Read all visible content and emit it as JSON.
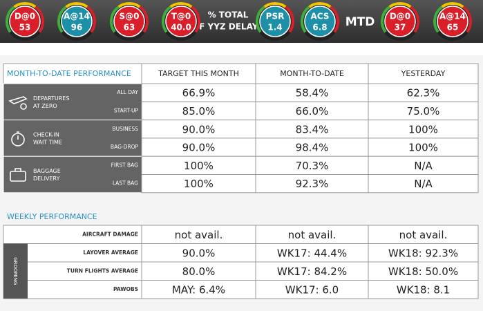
{
  "header": {
    "gauges": [
      {
        "label": "D@0",
        "value": "53",
        "color": "#d81f2a"
      },
      {
        "label": "A@14",
        "value": "96",
        "color": "#1d8fa6"
      },
      {
        "label": "S@0",
        "value": "63",
        "color": "#d81f2a"
      },
      {
        "label": "T@0",
        "value": "40.0",
        "color": "#d81f2a"
      },
      {
        "label": "PSR",
        "value": "1.4",
        "color": "#1d8fa6"
      },
      {
        "label": "ACS",
        "value": "6.8",
        "color": "#1d8fa6"
      },
      {
        "label": "D@0",
        "value": "37",
        "color": "#d81f2a"
      },
      {
        "label": "A@14",
        "value": "65",
        "color": "#d81f2a"
      }
    ],
    "delay_caption": [
      "% TOTAL",
      "OF YYZ DELAYS"
    ],
    "mtd": "MTD"
  },
  "monthly": {
    "title": "MONTH-TO-DATE PERFORMANCE",
    "columns": [
      "TARGET THIS MONTH",
      "MONTH-TO-DATE",
      "YESTERDAY"
    ],
    "groups": [
      {
        "label": [
          "DEPARTURES",
          "AT ZERO"
        ],
        "rows": [
          {
            "label": "ALL DAY",
            "cells": [
              "66.9%",
              "58.4%",
              "62.3%"
            ]
          },
          {
            "label": "START-UP",
            "cells": [
              "85.0%",
              "66.0%",
              "75.0%"
            ]
          }
        ]
      },
      {
        "label": [
          "CHECK-IN",
          "WAIT TIME"
        ],
        "rows": [
          {
            "label": "BUSINESS",
            "cells": [
              "90.0%",
              "83.4%",
              "100%"
            ]
          },
          {
            "label": "BAG-DROP",
            "cells": [
              "90.0%",
              "98.4%",
              "100%"
            ]
          }
        ]
      },
      {
        "label": [
          "BAGGAGE",
          "DELIVERY"
        ],
        "rows": [
          {
            "label": "FIRST BAG",
            "cells": [
              "100%",
              "70.3%",
              "N/A"
            ]
          },
          {
            "label": "LAST BAG",
            "cells": [
              "100%",
              "92.3%",
              "N/A"
            ]
          }
        ]
      }
    ]
  },
  "weekly": {
    "title": "WEEKLY PERFORMANCE",
    "side_label": "GROOMING",
    "rows": [
      {
        "label": "AIRCRAFT DAMAGE",
        "cells": [
          "not avail.",
          "not avail.",
          "not avail."
        ]
      },
      {
        "label": "LAYOVER AVERAGE",
        "cells": [
          "90.0%",
          "WK17: 44.4%",
          "WK18: 92.3%"
        ]
      },
      {
        "label": "TURN FLIGHTS AVERAGE",
        "cells": [
          "80.0%",
          "WK17: 84.2%",
          "WK18: 50.0%"
        ]
      },
      {
        "label": "PAWOBS",
        "cells": [
          "MAY: 6.4%",
          "WK17: 6.0",
          "WK18: 8.1"
        ]
      }
    ]
  }
}
